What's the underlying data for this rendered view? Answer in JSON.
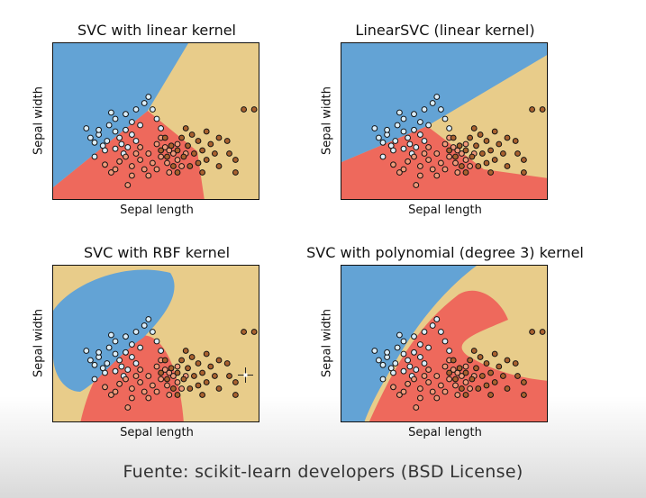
{
  "footer": "Fuente: scikit-learn developers (BSD License)",
  "colors": {
    "class0": "#63a3d5",
    "class1": "#ee695c",
    "class2": "#e8cc8a",
    "point0": "#dbeefb",
    "point1": "#f19a7a",
    "point2": "#a9612f"
  },
  "chart_data": [
    {
      "type": "scatter",
      "title": "SVC with linear kernel",
      "xlabel": "Sepal length",
      "ylabel": "Sepal width",
      "kernel": "linear",
      "legend": "none",
      "grid": false
    },
    {
      "type": "scatter",
      "title": "LinearSVC (linear kernel)",
      "xlabel": "Sepal length",
      "ylabel": "Sepal width",
      "kernel": "linearsvc",
      "legend": "none",
      "grid": false
    },
    {
      "type": "scatter",
      "title": "SVC with RBF kernel",
      "xlabel": "Sepal length",
      "ylabel": "Sepal width",
      "kernel": "rbf",
      "legend": "none",
      "grid": false
    },
    {
      "type": "scatter",
      "title": "SVC with polynomial (degree 3) kernel",
      "xlabel": "Sepal length",
      "ylabel": "Sepal width",
      "kernel": "poly",
      "legend": "none",
      "grid": false
    }
  ],
  "points": [
    [
      0.18,
      0.4,
      0
    ],
    [
      0.2,
      0.37,
      0
    ],
    [
      0.22,
      0.42,
      0
    ],
    [
      0.24,
      0.35,
      0
    ],
    [
      0.22,
      0.45,
      0
    ],
    [
      0.26,
      0.38,
      0
    ],
    [
      0.27,
      0.48,
      0
    ],
    [
      0.3,
      0.44,
      0
    ],
    [
      0.3,
      0.52,
      0
    ],
    [
      0.32,
      0.4,
      0
    ],
    [
      0.33,
      0.36,
      0
    ],
    [
      0.35,
      0.45,
      0
    ],
    [
      0.35,
      0.55,
      0
    ],
    [
      0.38,
      0.5,
      0
    ],
    [
      0.38,
      0.42,
      0
    ],
    [
      0.4,
      0.58,
      0
    ],
    [
      0.42,
      0.48,
      0
    ],
    [
      0.44,
      0.62,
      0
    ],
    [
      0.46,
      0.66,
      0
    ],
    [
      0.48,
      0.58,
      0
    ],
    [
      0.5,
      0.52,
      0
    ],
    [
      0.52,
      0.46,
      0
    ],
    [
      0.28,
      0.56,
      0
    ],
    [
      0.2,
      0.28,
      0
    ],
    [
      0.25,
      0.32,
      0
    ],
    [
      0.3,
      0.33,
      0
    ],
    [
      0.34,
      0.3,
      0
    ],
    [
      0.36,
      0.34,
      0
    ],
    [
      0.4,
      0.38,
      0
    ],
    [
      0.16,
      0.46,
      0
    ],
    [
      0.25,
      0.23,
      1
    ],
    [
      0.28,
      0.18,
      1
    ],
    [
      0.3,
      0.2,
      1
    ],
    [
      0.32,
      0.25,
      1
    ],
    [
      0.35,
      0.28,
      1
    ],
    [
      0.38,
      0.22,
      1
    ],
    [
      0.38,
      0.16,
      1
    ],
    [
      0.42,
      0.26,
      1
    ],
    [
      0.44,
      0.2,
      1
    ],
    [
      0.46,
      0.3,
      1
    ],
    [
      0.48,
      0.24,
      1
    ],
    [
      0.5,
      0.2,
      1
    ],
    [
      0.52,
      0.28,
      1
    ],
    [
      0.54,
      0.34,
      1
    ],
    [
      0.55,
      0.24,
      1
    ],
    [
      0.56,
      0.18,
      1
    ],
    [
      0.58,
      0.3,
      1
    ],
    [
      0.6,
      0.26,
      1
    ],
    [
      0.62,
      0.22,
      1
    ],
    [
      0.46,
      0.16,
      1
    ],
    [
      0.4,
      0.3,
      1
    ],
    [
      0.5,
      0.36,
      1
    ],
    [
      0.6,
      0.36,
      1
    ],
    [
      0.36,
      0.1,
      1
    ],
    [
      0.64,
      0.3,
      1
    ],
    [
      0.42,
      0.34,
      1
    ],
    [
      0.52,
      0.4,
      1
    ],
    [
      0.56,
      0.32,
      1
    ],
    [
      0.55,
      0.28,
      2
    ],
    [
      0.57,
      0.35,
      2
    ],
    [
      0.58,
      0.22,
      2
    ],
    [
      0.6,
      0.32,
      2
    ],
    [
      0.62,
      0.4,
      2
    ],
    [
      0.63,
      0.28,
      2
    ],
    [
      0.65,
      0.35,
      2
    ],
    [
      0.66,
      0.22,
      2
    ],
    [
      0.68,
      0.3,
      2
    ],
    [
      0.7,
      0.38,
      2
    ],
    [
      0.72,
      0.32,
      2
    ],
    [
      0.74,
      0.26,
      2
    ],
    [
      0.76,
      0.36,
      2
    ],
    [
      0.78,
      0.3,
      2
    ],
    [
      0.8,
      0.22,
      2
    ],
    [
      0.8,
      0.4,
      2
    ],
    [
      0.7,
      0.24,
      2
    ],
    [
      0.67,
      0.42,
      2
    ],
    [
      0.74,
      0.44,
      2
    ],
    [
      0.85,
      0.3,
      2
    ],
    [
      0.88,
      0.26,
      2
    ],
    [
      0.88,
      0.18,
      2
    ],
    [
      0.92,
      0.58,
      2
    ],
    [
      0.97,
      0.58,
      2
    ],
    [
      0.6,
      0.18,
      2
    ],
    [
      0.72,
      0.18,
      2
    ],
    [
      0.64,
      0.46,
      2
    ],
    [
      0.84,
      0.38,
      2
    ],
    [
      0.52,
      0.32,
      2
    ],
    [
      0.54,
      0.4,
      2
    ]
  ]
}
